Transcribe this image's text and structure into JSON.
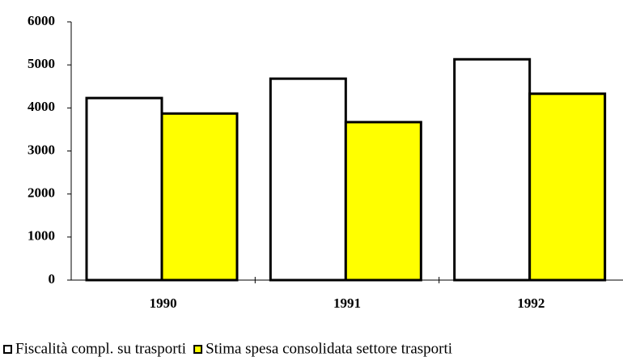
{
  "chart_data": {
    "type": "bar",
    "categories": [
      "1990",
      "1991",
      "1992"
    ],
    "series": [
      {
        "name": "Fiscalità compl. su trasporti",
        "color": "#ffffff",
        "values": [
          4230,
          4680,
          5130
        ]
      },
      {
        "name": "Stima spesa consolidata settore trasporti",
        "color": "#ffff00",
        "values": [
          3870,
          3670,
          4330
        ]
      }
    ],
    "ylim": [
      0,
      6000
    ],
    "yticks": [
      0,
      1000,
      2000,
      3000,
      4000,
      5000,
      6000
    ],
    "grid": false,
    "legend": "bottom"
  }
}
